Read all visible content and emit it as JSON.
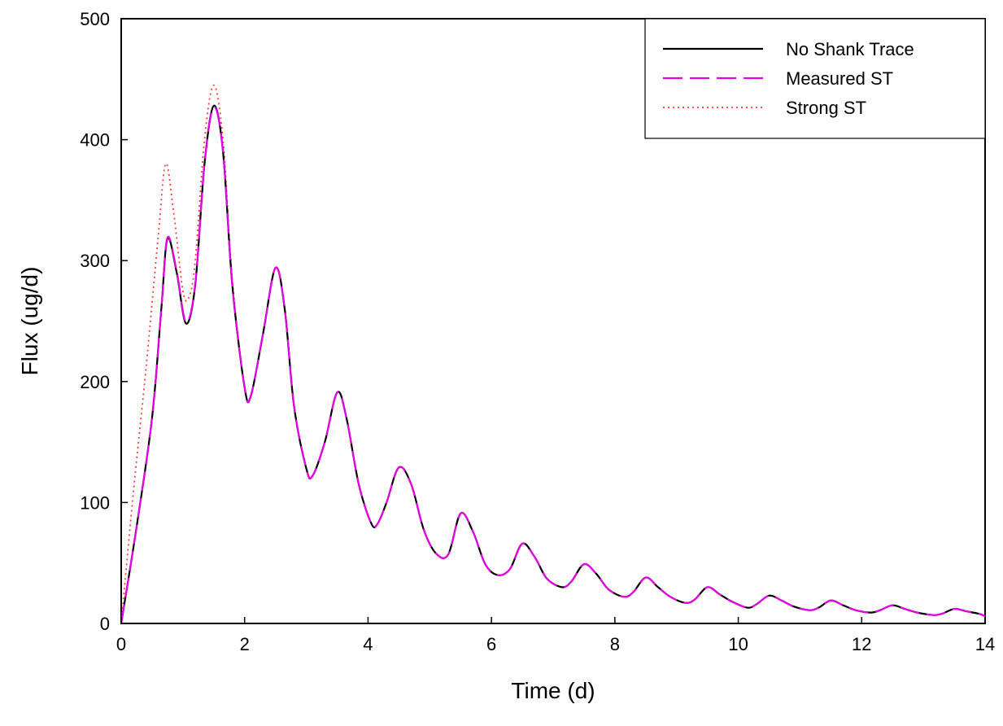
{
  "chart_data": {
    "type": "line",
    "title": "",
    "xlabel": "Time (d)",
    "ylabel": "Flux (ug/d)",
    "xlim": [
      0,
      14
    ],
    "ylim": [
      0,
      500
    ],
    "x_ticks": [
      0,
      2,
      4,
      6,
      8,
      10,
      12,
      14
    ],
    "y_ticks": [
      0,
      100,
      200,
      300,
      400,
      500
    ],
    "x_tick_labels": [
      "0",
      "2",
      "4",
      "6",
      "8",
      "10",
      "12",
      "14"
    ],
    "y_tick_labels": [
      "0",
      "100",
      "200",
      "300",
      "400",
      "500"
    ],
    "grid": false,
    "legend_position": "top-right",
    "series": [
      {
        "name": "No Shank Trace",
        "color": "#000000",
        "style": "solid",
        "x": [
          0,
          0.25,
          0.5,
          0.65,
          0.75,
          0.9,
          1.05,
          1.2,
          1.35,
          1.5,
          1.65,
          1.8,
          2.0,
          2.1,
          2.3,
          2.5,
          2.65,
          2.8,
          3.0,
          3.1,
          3.3,
          3.5,
          3.65,
          3.85,
          4.05,
          4.15,
          4.3,
          4.5,
          4.7,
          4.9,
          5.1,
          5.3,
          5.5,
          5.7,
          5.9,
          6.1,
          6.3,
          6.5,
          6.7,
          6.9,
          7.15,
          7.3,
          7.5,
          7.7,
          7.9,
          8.15,
          8.3,
          8.5,
          8.7,
          8.9,
          9.15,
          9.3,
          9.5,
          9.7,
          9.9,
          10.15,
          10.3,
          10.5,
          10.7,
          10.9,
          11.15,
          11.3,
          11.5,
          11.7,
          11.9,
          12.15,
          12.3,
          12.5,
          12.7,
          12.9,
          13.15,
          13.3,
          13.5,
          13.7,
          13.9,
          14.0
        ],
        "y": [
          0,
          80,
          170,
          260,
          318,
          290,
          248,
          280,
          380,
          428,
          390,
          280,
          195,
          188,
          240,
          294,
          260,
          180,
          128,
          122,
          150,
          191,
          170,
          115,
          83,
          82,
          100,
          129,
          115,
          78,
          58,
          57,
          91,
          76,
          49,
          40,
          45,
          66,
          55,
          37,
          30,
          35,
          49,
          41,
          28,
          22,
          26,
          38,
          30,
          22,
          17,
          20,
          30,
          24,
          18,
          13,
          16,
          23,
          19,
          14,
          11,
          13,
          19,
          15,
          11,
          9,
          11,
          15,
          12,
          9,
          7,
          8,
          12,
          10,
          8,
          6
        ]
      },
      {
        "name": "Measured ST",
        "color": "#e600e6",
        "style": "dashed",
        "x": [
          0,
          0.25,
          0.5,
          0.65,
          0.75,
          0.9,
          1.05,
          1.2,
          1.35,
          1.5,
          1.65,
          1.8,
          2.0,
          2.1,
          2.3,
          2.5,
          2.65,
          2.8,
          3.0,
          3.1,
          3.3,
          3.5,
          3.65,
          3.85,
          4.05,
          4.15,
          4.3,
          4.5,
          4.7,
          4.9,
          5.1,
          5.3,
          5.5,
          5.7,
          5.9,
          6.1,
          6.3,
          6.5,
          6.7,
          6.9,
          7.15,
          7.3,
          7.5,
          7.7,
          7.9,
          8.15,
          8.3,
          8.5,
          8.7,
          8.9,
          9.15,
          9.3,
          9.5,
          9.7,
          9.9,
          10.15,
          10.3,
          10.5,
          10.7,
          10.9,
          11.15,
          11.3,
          11.5,
          11.7,
          11.9,
          12.15,
          12.3,
          12.5,
          12.7,
          12.9,
          13.15,
          13.3,
          13.5,
          13.7,
          13.9,
          14.0
        ],
        "y": [
          0,
          80,
          170,
          260,
          319,
          291,
          249,
          281,
          380,
          427,
          390,
          280,
          195,
          188,
          240,
          294,
          260,
          180,
          128,
          122,
          150,
          191,
          170,
          115,
          83,
          82,
          100,
          129,
          115,
          78,
          58,
          57,
          91,
          76,
          49,
          40,
          45,
          66,
          55,
          37,
          30,
          35,
          49,
          41,
          28,
          22,
          26,
          38,
          30,
          22,
          17,
          20,
          30,
          24,
          18,
          13,
          16,
          23,
          19,
          14,
          11,
          13,
          19,
          15,
          11,
          9,
          11,
          15,
          12,
          9,
          7,
          8,
          12,
          10,
          8,
          6
        ]
      },
      {
        "name": "Strong ST",
        "color": "#ff3b3b",
        "style": "dotted",
        "x": [
          0,
          0.2,
          0.4,
          0.6,
          0.72,
          0.85,
          1.0,
          1.1,
          1.2,
          1.35,
          1.5,
          1.65,
          1.8,
          2.0,
          2.1,
          2.3,
          2.5,
          2.65,
          2.8,
          3.0,
          3.1,
          3.3,
          3.5,
          3.65,
          3.85,
          4.05,
          4.15,
          4.3,
          4.5,
          4.7,
          4.9,
          5.1,
          5.3,
          5.5,
          5.7,
          5.9,
          6.1,
          6.3,
          6.5,
          6.7,
          6.9,
          7.15,
          7.3,
          7.5,
          7.7,
          7.9,
          8.15,
          8.3,
          8.5,
          8.7,
          8.9,
          9.15,
          9.3,
          9.5,
          9.7,
          9.9,
          10.15,
          10.3,
          10.5,
          10.7,
          10.9,
          11.15,
          11.3,
          11.5,
          11.7,
          11.9,
          12.15,
          12.3,
          12.5,
          12.7,
          12.9,
          13.15,
          13.3,
          13.5,
          13.7,
          13.9,
          14.0
        ],
        "y": [
          0,
          110,
          210,
          320,
          380,
          340,
          275,
          270,
          300,
          400,
          445,
          400,
          285,
          195,
          188,
          240,
          294,
          260,
          180,
          128,
          122,
          150,
          191,
          170,
          115,
          83,
          82,
          100,
          129,
          115,
          78,
          58,
          57,
          91,
          76,
          49,
          40,
          45,
          66,
          55,
          37,
          30,
          35,
          49,
          41,
          28,
          22,
          26,
          38,
          30,
          22,
          17,
          20,
          30,
          24,
          18,
          13,
          16,
          23,
          19,
          14,
          11,
          13,
          19,
          15,
          11,
          9,
          11,
          15,
          12,
          9,
          7,
          8,
          12,
          10,
          8,
          6
        ]
      }
    ]
  }
}
